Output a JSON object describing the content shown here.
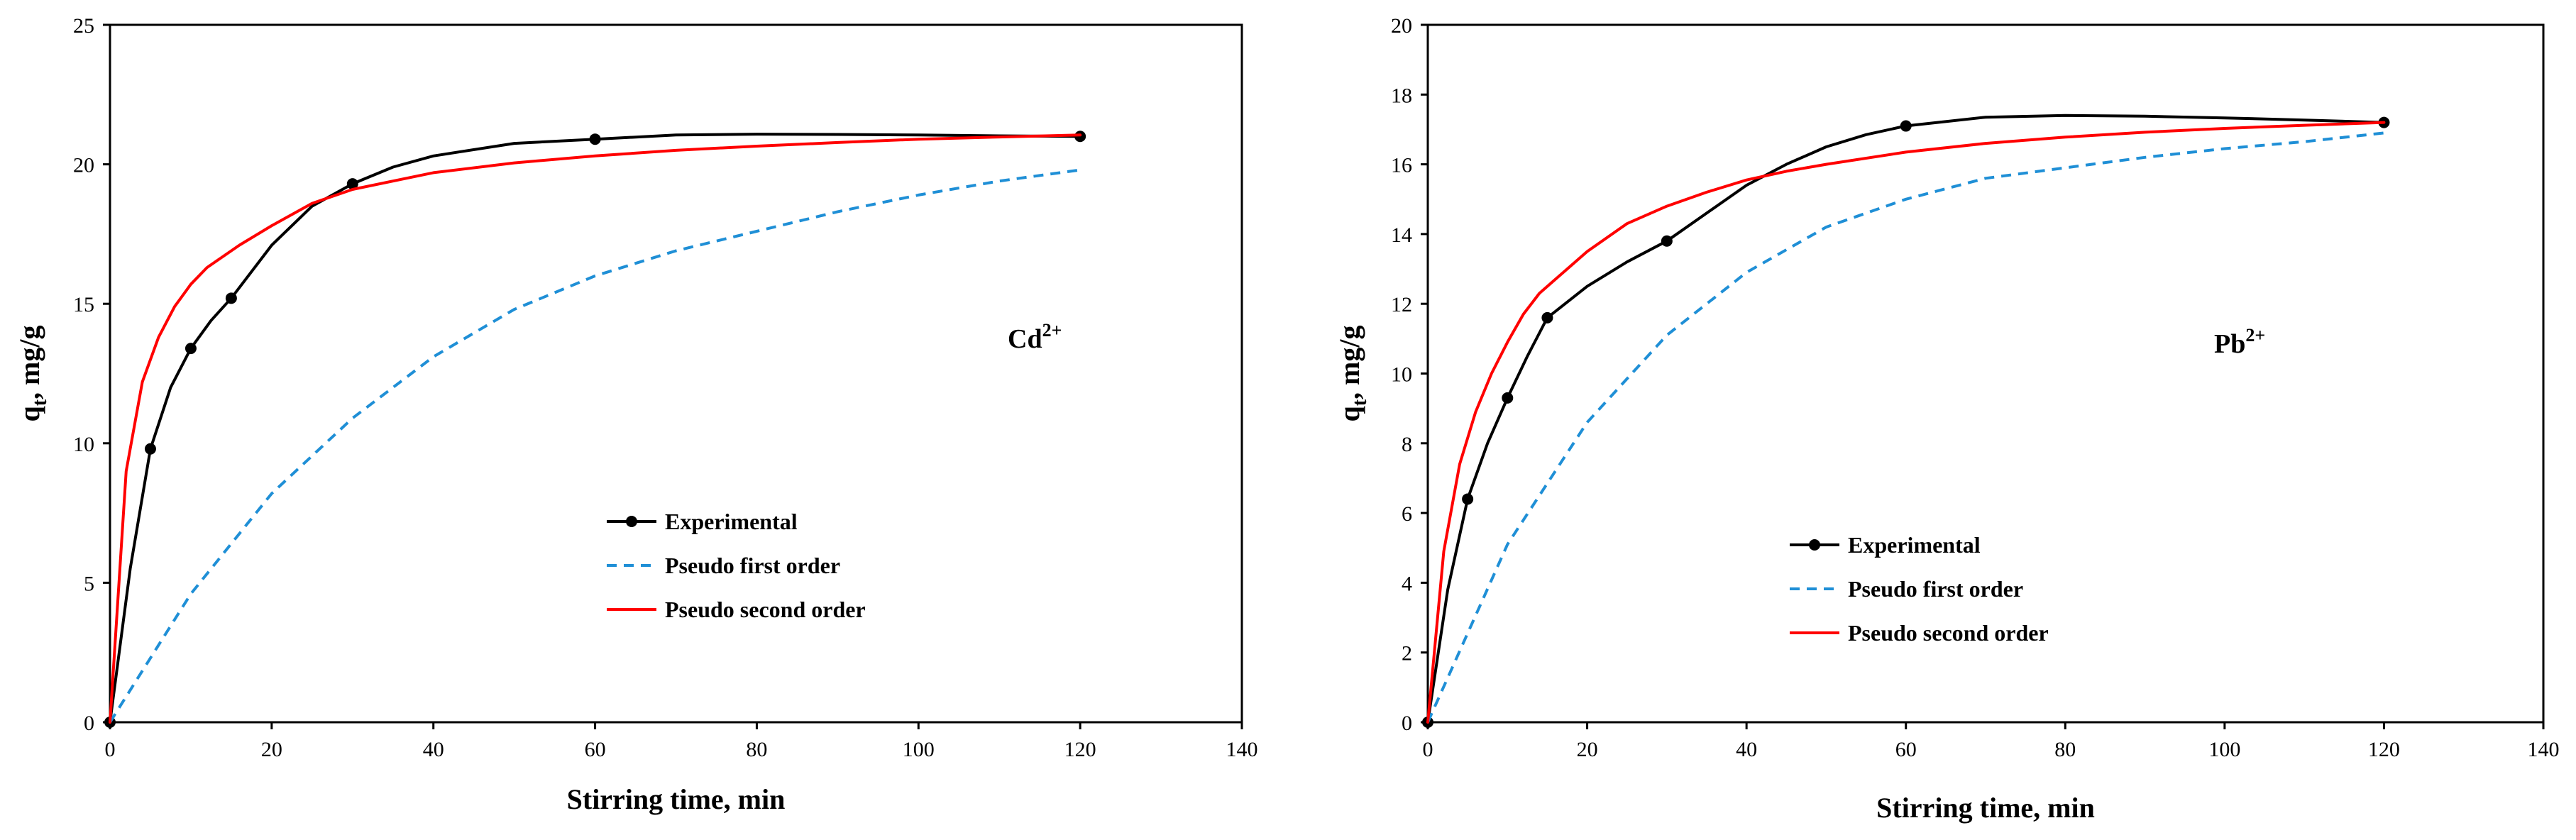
{
  "legend_labels": {
    "experimental": "Experimental",
    "pseudo_first": "Pseudo first order",
    "pseudo_second": "Pseudo second order"
  },
  "colors": {
    "experimental": "#000000",
    "pseudo_first": "#1f8fd6",
    "pseudo_second": "#ff0000"
  },
  "chart_data": [
    {
      "type": "line",
      "title": "",
      "annotation": {
        "main": "Cd",
        "superscript": "2+"
      },
      "xlabel": "Stirring time, min",
      "ylabel": {
        "main": "q",
        "subscript": "t",
        "suffix": ", mg/g"
      },
      "xlim": [
        0,
        140
      ],
      "ylim": [
        0,
        25
      ],
      "xticks": [
        0,
        20,
        40,
        60,
        80,
        100,
        120,
        140
      ],
      "yticks": [
        0,
        5,
        10,
        15,
        20,
        25
      ],
      "legend_position": "lower-middle",
      "series": [
        {
          "name": "Experimental",
          "style": "solid-markers",
          "x": [
            0,
            5,
            10,
            15,
            30,
            60,
            120
          ],
          "y": [
            0,
            9.8,
            13.4,
            15.2,
            19.3,
            20.9,
            21.0
          ],
          "curve_x": [
            0,
            2.5,
            5,
            7.5,
            10,
            12.5,
            15,
            20,
            25,
            30,
            35,
            40,
            50,
            60,
            70,
            80,
            90,
            100,
            110,
            120
          ],
          "curve_y": [
            0,
            5.5,
            9.8,
            12.0,
            13.4,
            14.4,
            15.2,
            17.1,
            18.5,
            19.3,
            19.9,
            20.3,
            20.75,
            20.9,
            21.05,
            21.08,
            21.07,
            21.05,
            21.02,
            21.0
          ]
        },
        {
          "name": "Pseudo first order",
          "style": "dashed",
          "x": [
            0,
            10,
            20,
            30,
            40,
            50,
            60,
            70,
            80,
            90,
            100,
            110,
            120
          ],
          "y": [
            0,
            4.6,
            8.2,
            10.9,
            13.1,
            14.8,
            16.0,
            16.9,
            17.6,
            18.3,
            18.9,
            19.4,
            19.8
          ]
        },
        {
          "name": "Pseudo second order",
          "style": "solid",
          "x": [
            0,
            2,
            4,
            6,
            8,
            10,
            12,
            14,
            16,
            20,
            25,
            30,
            40,
            50,
            60,
            70,
            80,
            90,
            100,
            110,
            120
          ],
          "y": [
            0,
            9.0,
            12.2,
            13.8,
            14.9,
            15.7,
            16.3,
            16.7,
            17.1,
            17.8,
            18.6,
            19.1,
            19.7,
            20.05,
            20.3,
            20.5,
            20.65,
            20.78,
            20.9,
            20.98,
            21.05
          ]
        }
      ]
    },
    {
      "type": "line",
      "title": "",
      "annotation": {
        "main": "Pb",
        "superscript": "2+"
      },
      "xlabel": "Stirring time, min",
      "ylabel": {
        "main": "q",
        "subscript": "t",
        "suffix": ", mg/g"
      },
      "xlim": [
        0,
        140
      ],
      "ylim": [
        0,
        20
      ],
      "xticks": [
        0,
        20,
        40,
        60,
        80,
        100,
        120,
        140
      ],
      "yticks": [
        0,
        2,
        4,
        6,
        8,
        10,
        12,
        14,
        16,
        18,
        20
      ],
      "legend_position": "lower-left",
      "series": [
        {
          "name": "Experimental",
          "style": "solid-markers",
          "x": [
            0,
            5,
            10,
            15,
            30,
            60,
            120
          ],
          "y": [
            0,
            6.4,
            9.3,
            11.6,
            13.8,
            17.1,
            17.2
          ],
          "curve_x": [
            0,
            2.5,
            5,
            7.5,
            10,
            12.5,
            15,
            20,
            25,
            30,
            35,
            40,
            45,
            50,
            55,
            60,
            70,
            80,
            90,
            100,
            110,
            120
          ],
          "curve_y": [
            0,
            3.8,
            6.4,
            8.0,
            9.3,
            10.5,
            11.6,
            12.5,
            13.2,
            13.8,
            14.6,
            15.4,
            16.0,
            16.5,
            16.85,
            17.1,
            17.35,
            17.4,
            17.38,
            17.33,
            17.27,
            17.2
          ]
        },
        {
          "name": "Pseudo first order",
          "style": "dashed",
          "x": [
            0,
            10,
            20,
            30,
            40,
            50,
            60,
            70,
            80,
            90,
            100,
            110,
            120
          ],
          "y": [
            0,
            5.1,
            8.6,
            11.1,
            12.9,
            14.2,
            15.0,
            15.6,
            15.9,
            16.2,
            16.45,
            16.65,
            16.9
          ]
        },
        {
          "name": "Pseudo second order",
          "style": "solid",
          "x": [
            0,
            2,
            4,
            6,
            8,
            10,
            12,
            14,
            16,
            20,
            25,
            30,
            35,
            40,
            45,
            50,
            60,
            70,
            80,
            90,
            100,
            110,
            120
          ],
          "y": [
            0,
            4.9,
            7.4,
            8.9,
            10.0,
            10.9,
            11.7,
            12.3,
            12.7,
            13.5,
            14.3,
            14.8,
            15.2,
            15.55,
            15.8,
            16.0,
            16.35,
            16.6,
            16.78,
            16.92,
            17.03,
            17.12,
            17.2
          ]
        }
      ]
    }
  ]
}
